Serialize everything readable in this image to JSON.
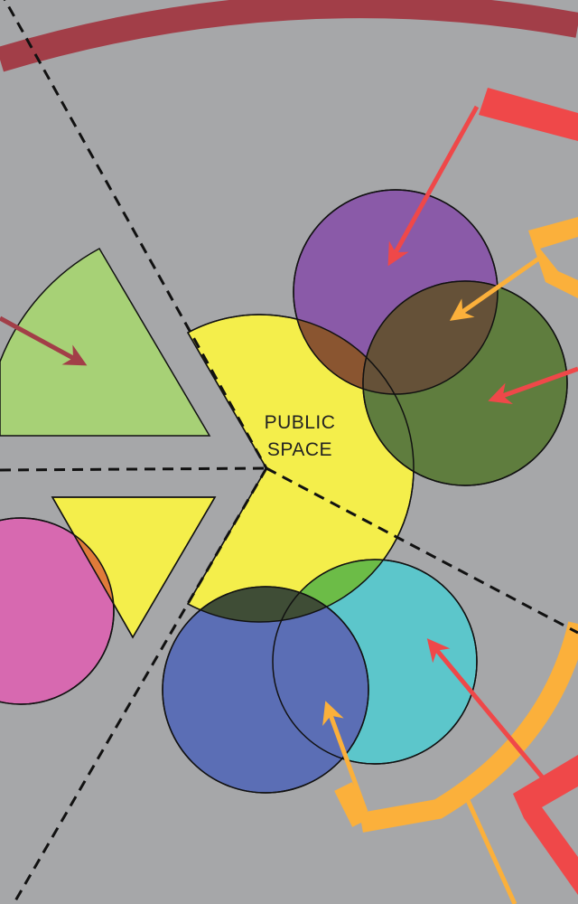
{
  "diagram": {
    "center_label_line1": "PUBLIC",
    "center_label_line2": "SPACE"
  },
  "colors": {
    "background": "#a6a7a9",
    "outer_ring": "#a23e48",
    "red_accent": "#ef4849",
    "orange_accent": "#fbb03b",
    "yellow": "#f4ee4b",
    "green_wedge": "#a7d176",
    "purple": "#8a5aa8",
    "olive": "#5f7d3e",
    "blue": "#5b6eb5",
    "cyan": "#5cc6cb",
    "pink": "#d769b0",
    "overlap_brown": "#8a5530",
    "overlap_dark": "#655138",
    "overlap_green": "#6cbc47",
    "overlap_orange": "#e07b3a",
    "dashed_line": "#111111"
  }
}
